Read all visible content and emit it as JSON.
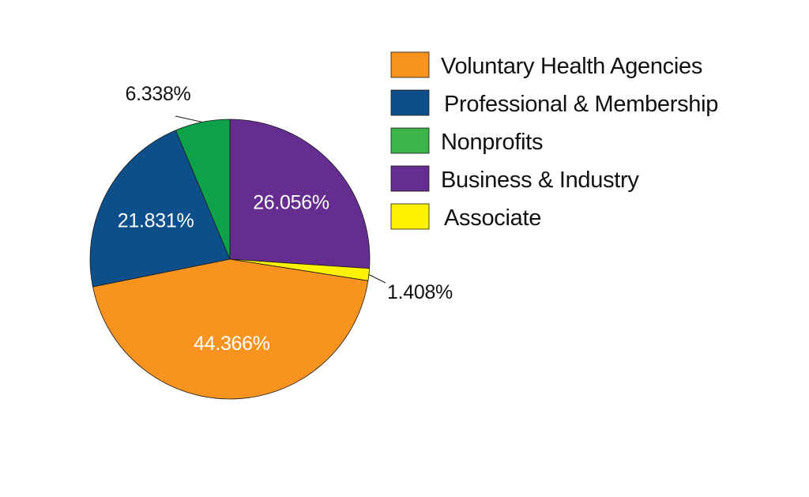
{
  "chart_data": {
    "type": "pie",
    "title": "",
    "start_angle_deg": -90,
    "direction": "clockwise",
    "legend_position": "right",
    "slices": [
      {
        "name": "Business & Industry",
        "value": 26.056,
        "label": "26.056%",
        "color": "#652d90",
        "label_color": "#ffffff",
        "label_placement": "inside"
      },
      {
        "name": "Associate",
        "value": 1.408,
        "label": "1.408%",
        "color": "#fff200",
        "label_color": "#111111",
        "label_placement": "outside"
      },
      {
        "name": "Voluntary Health Agencies",
        "value": 44.366,
        "label": "44.366%",
        "color": "#f7931e",
        "label_color": "#ffffff",
        "label_placement": "inside"
      },
      {
        "name": "Professional & Membership",
        "value": 21.831,
        "label": "21.831%",
        "color": "#0c4f8a",
        "label_color": "#ffffff",
        "label_placement": "inside"
      },
      {
        "name": "Nonprofits",
        "value": 6.338,
        "label": "6.338%",
        "color": "#0ca14a",
        "label_color": "#111111",
        "label_placement": "outside"
      }
    ],
    "legend": [
      {
        "name": "Voluntary Health Agencies",
        "color": "#f7931e"
      },
      {
        "name": "Professional & Membership",
        "color": "#0c4f8a"
      },
      {
        "name": "Nonprofits",
        "color": "#3bb54a"
      },
      {
        "name": "Business & Industry",
        "color": "#652d90"
      },
      {
        "name": "Associate",
        "color": "#fff200"
      }
    ]
  }
}
